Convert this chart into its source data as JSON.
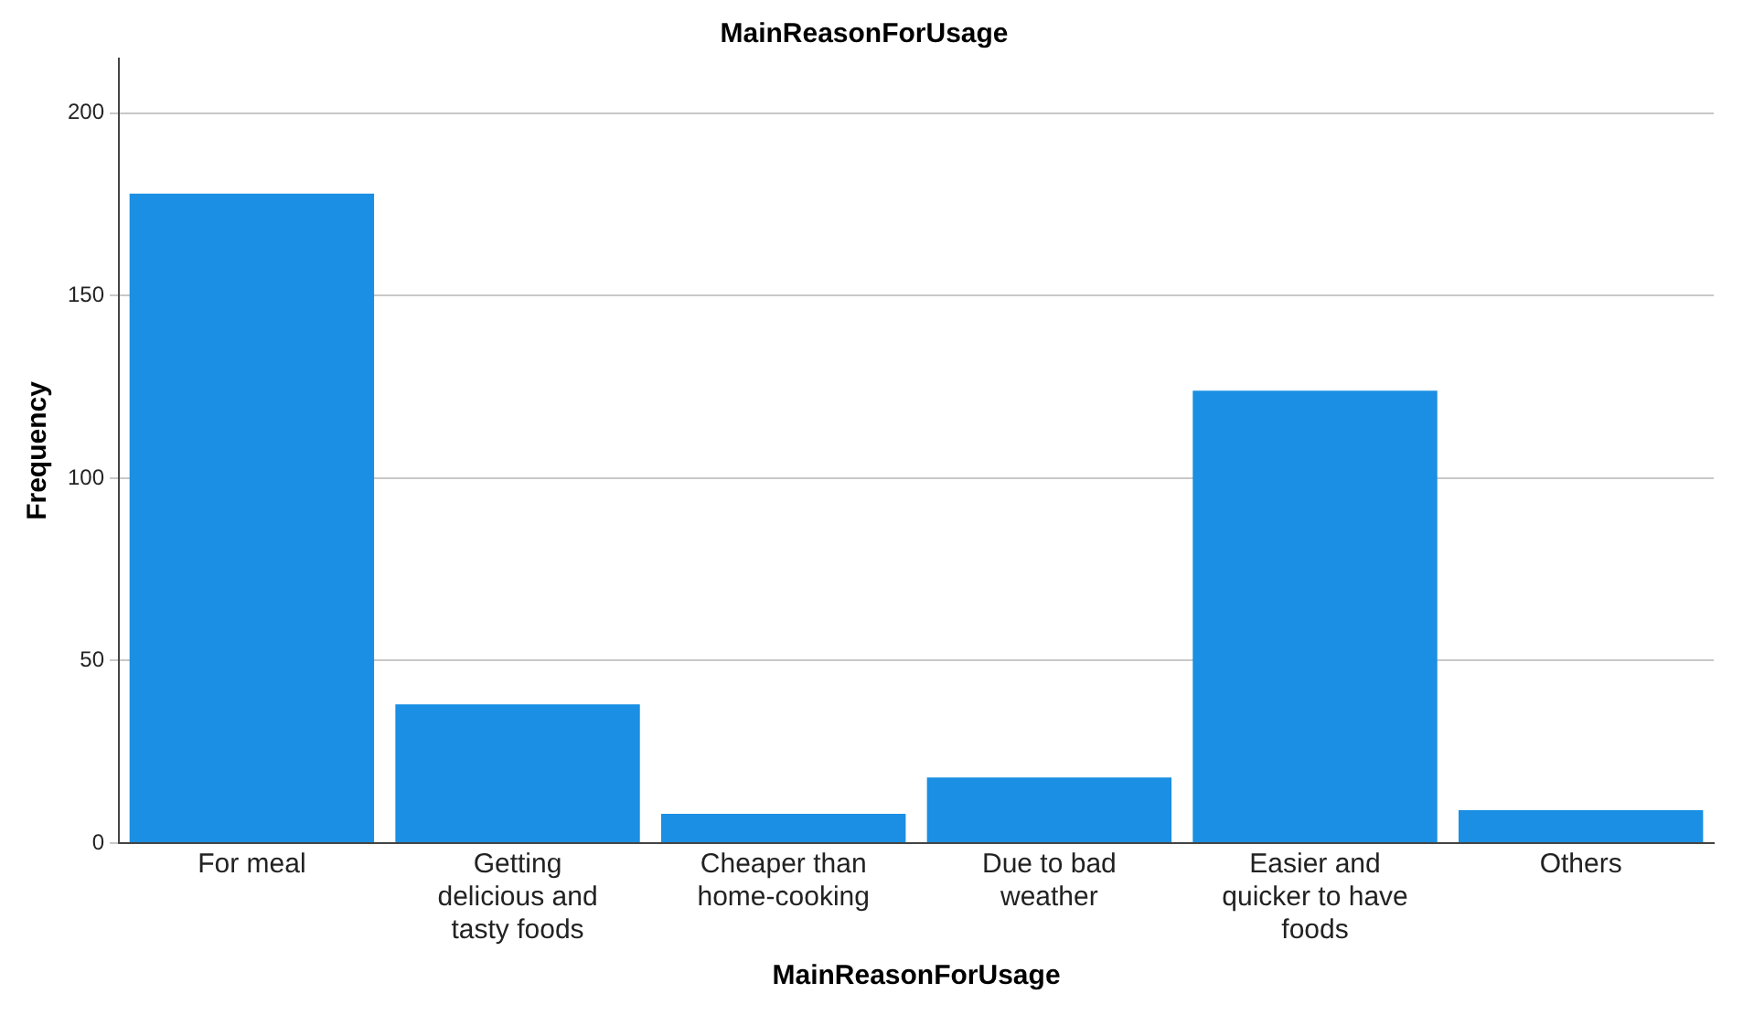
{
  "chart_data": {
    "type": "bar",
    "title": "MainReasonForUsage",
    "xlabel": "MainReasonForUsage",
    "ylabel": "Frequency",
    "categories": [
      "For meal",
      "Getting delicious and tasty foods",
      "Cheaper than home-cooking",
      "Due to bad weather",
      "Easier and quicker to have foods",
      "Others"
    ],
    "values": [
      178,
      38,
      8,
      18,
      124,
      9
    ],
    "color": "#1a8fe3",
    "ylim": [
      0,
      215
    ],
    "yticks": [
      0,
      50,
      100,
      150,
      200
    ],
    "grid": "y",
    "legend": false
  }
}
